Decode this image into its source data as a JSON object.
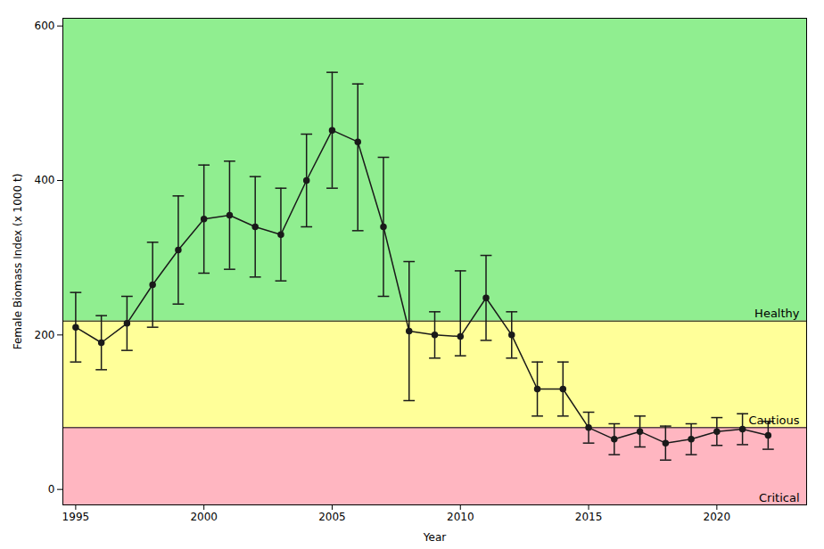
{
  "chart_data": {
    "type": "line",
    "x": [
      1995,
      1996,
      1997,
      1998,
      1999,
      2000,
      2001,
      2002,
      2003,
      2004,
      2005,
      2006,
      2007,
      2008,
      2009,
      2010,
      2011,
      2012,
      2013,
      2014,
      2015,
      2016,
      2017,
      2018,
      2019,
      2020,
      2021,
      2022
    ],
    "values": [
      210,
      190,
      215,
      265,
      310,
      350,
      355,
      340,
      330,
      400,
      465,
      450,
      340,
      205,
      200,
      198,
      248,
      200,
      130,
      130,
      80,
      65,
      75,
      60,
      65,
      75,
      78,
      70
    ],
    "err_low": [
      45,
      35,
      35,
      55,
      70,
      70,
      70,
      65,
      60,
      60,
      75,
      115,
      90,
      90,
      30,
      25,
      55,
      30,
      35,
      35,
      20,
      20,
      20,
      22,
      20,
      18,
      20,
      18
    ],
    "err_high": [
      45,
      35,
      35,
      55,
      70,
      70,
      70,
      65,
      60,
      60,
      75,
      75,
      90,
      90,
      30,
      85,
      55,
      30,
      35,
      35,
      20,
      20,
      20,
      22,
      20,
      18,
      20,
      18
    ],
    "color": "#1a1a1a",
    "marker": "circle",
    "line_style": "solid",
    "thresholds": [
      218,
      80
    ],
    "zones": [
      {
        "label": "Healthy",
        "from": 218,
        "to": 610,
        "color": "#90EE90"
      },
      {
        "label": "Cautious",
        "from": 80,
        "to": 218,
        "color": "#FFFF99"
      },
      {
        "label": "Critical",
        "from": -20,
        "to": 80,
        "color": "#FFB6C1"
      }
    ],
    "xlabel": "Year",
    "ylabel": "Female Biomass Index (x 1000 t)",
    "xlim": [
      1994.5,
      2023.5
    ],
    "ylim": [
      -20,
      610
    ],
    "xticks": [
      1995,
      2000,
      2005,
      2010,
      2015,
      2020
    ],
    "yticks": [
      0,
      200,
      400,
      600
    ],
    "grid": false
  }
}
